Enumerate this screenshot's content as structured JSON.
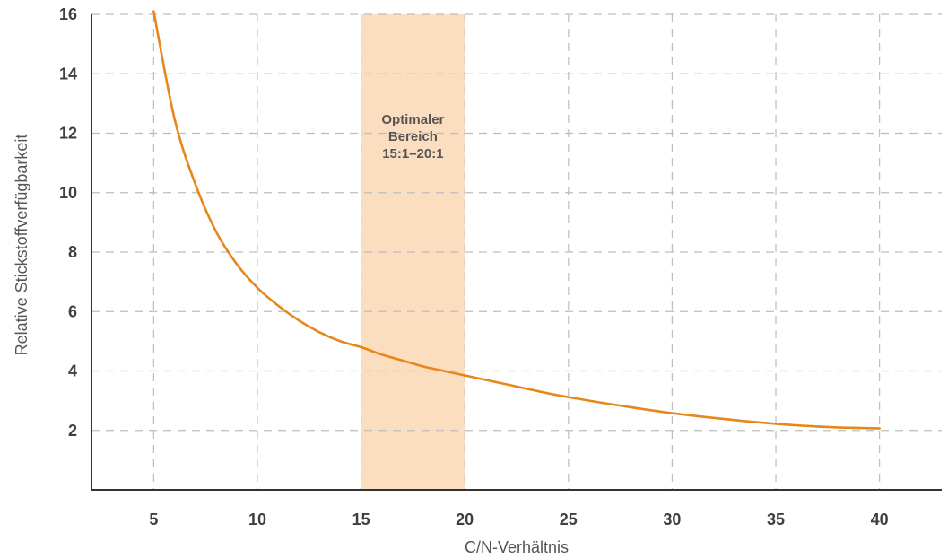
{
  "chart_data": {
    "type": "line",
    "title": "",
    "xlabel": "C/N-Verhältnis",
    "ylabel": "Relative Stickstoffverfügbarkeit",
    "xlim": [
      2,
      43
    ],
    "ylim": [
      0,
      16
    ],
    "x_ticks": [
      5,
      10,
      15,
      20,
      25,
      30,
      35,
      40
    ],
    "y_ticks": [
      2,
      4,
      6,
      8,
      10,
      12,
      14,
      16
    ],
    "grid": true,
    "colors": {
      "line": "#E8861A",
      "band": "#FBDDC0",
      "axis": "#333333",
      "grid": "#BDBDBD"
    },
    "highlight_band": {
      "x_range": [
        15,
        20
      ],
      "label_lines": [
        "Optimaler",
        "Bereich",
        "15:1–20:1"
      ]
    },
    "series": [
      {
        "x": [
          5,
          6,
          7,
          8,
          9,
          10,
          11,
          12,
          13,
          14,
          15,
          16,
          17,
          18,
          19,
          20,
          22,
          24,
          26,
          28,
          30,
          32,
          34,
          36,
          38,
          40
        ],
        "values": [
          16.1,
          12.5,
          10.3,
          8.7,
          7.6,
          6.8,
          6.2,
          5.7,
          5.3,
          5.0,
          4.8,
          4.55,
          4.35,
          4.15,
          4.0,
          3.85,
          3.55,
          3.25,
          3.0,
          2.78,
          2.58,
          2.42,
          2.28,
          2.17,
          2.1,
          2.07
        ]
      }
    ]
  }
}
